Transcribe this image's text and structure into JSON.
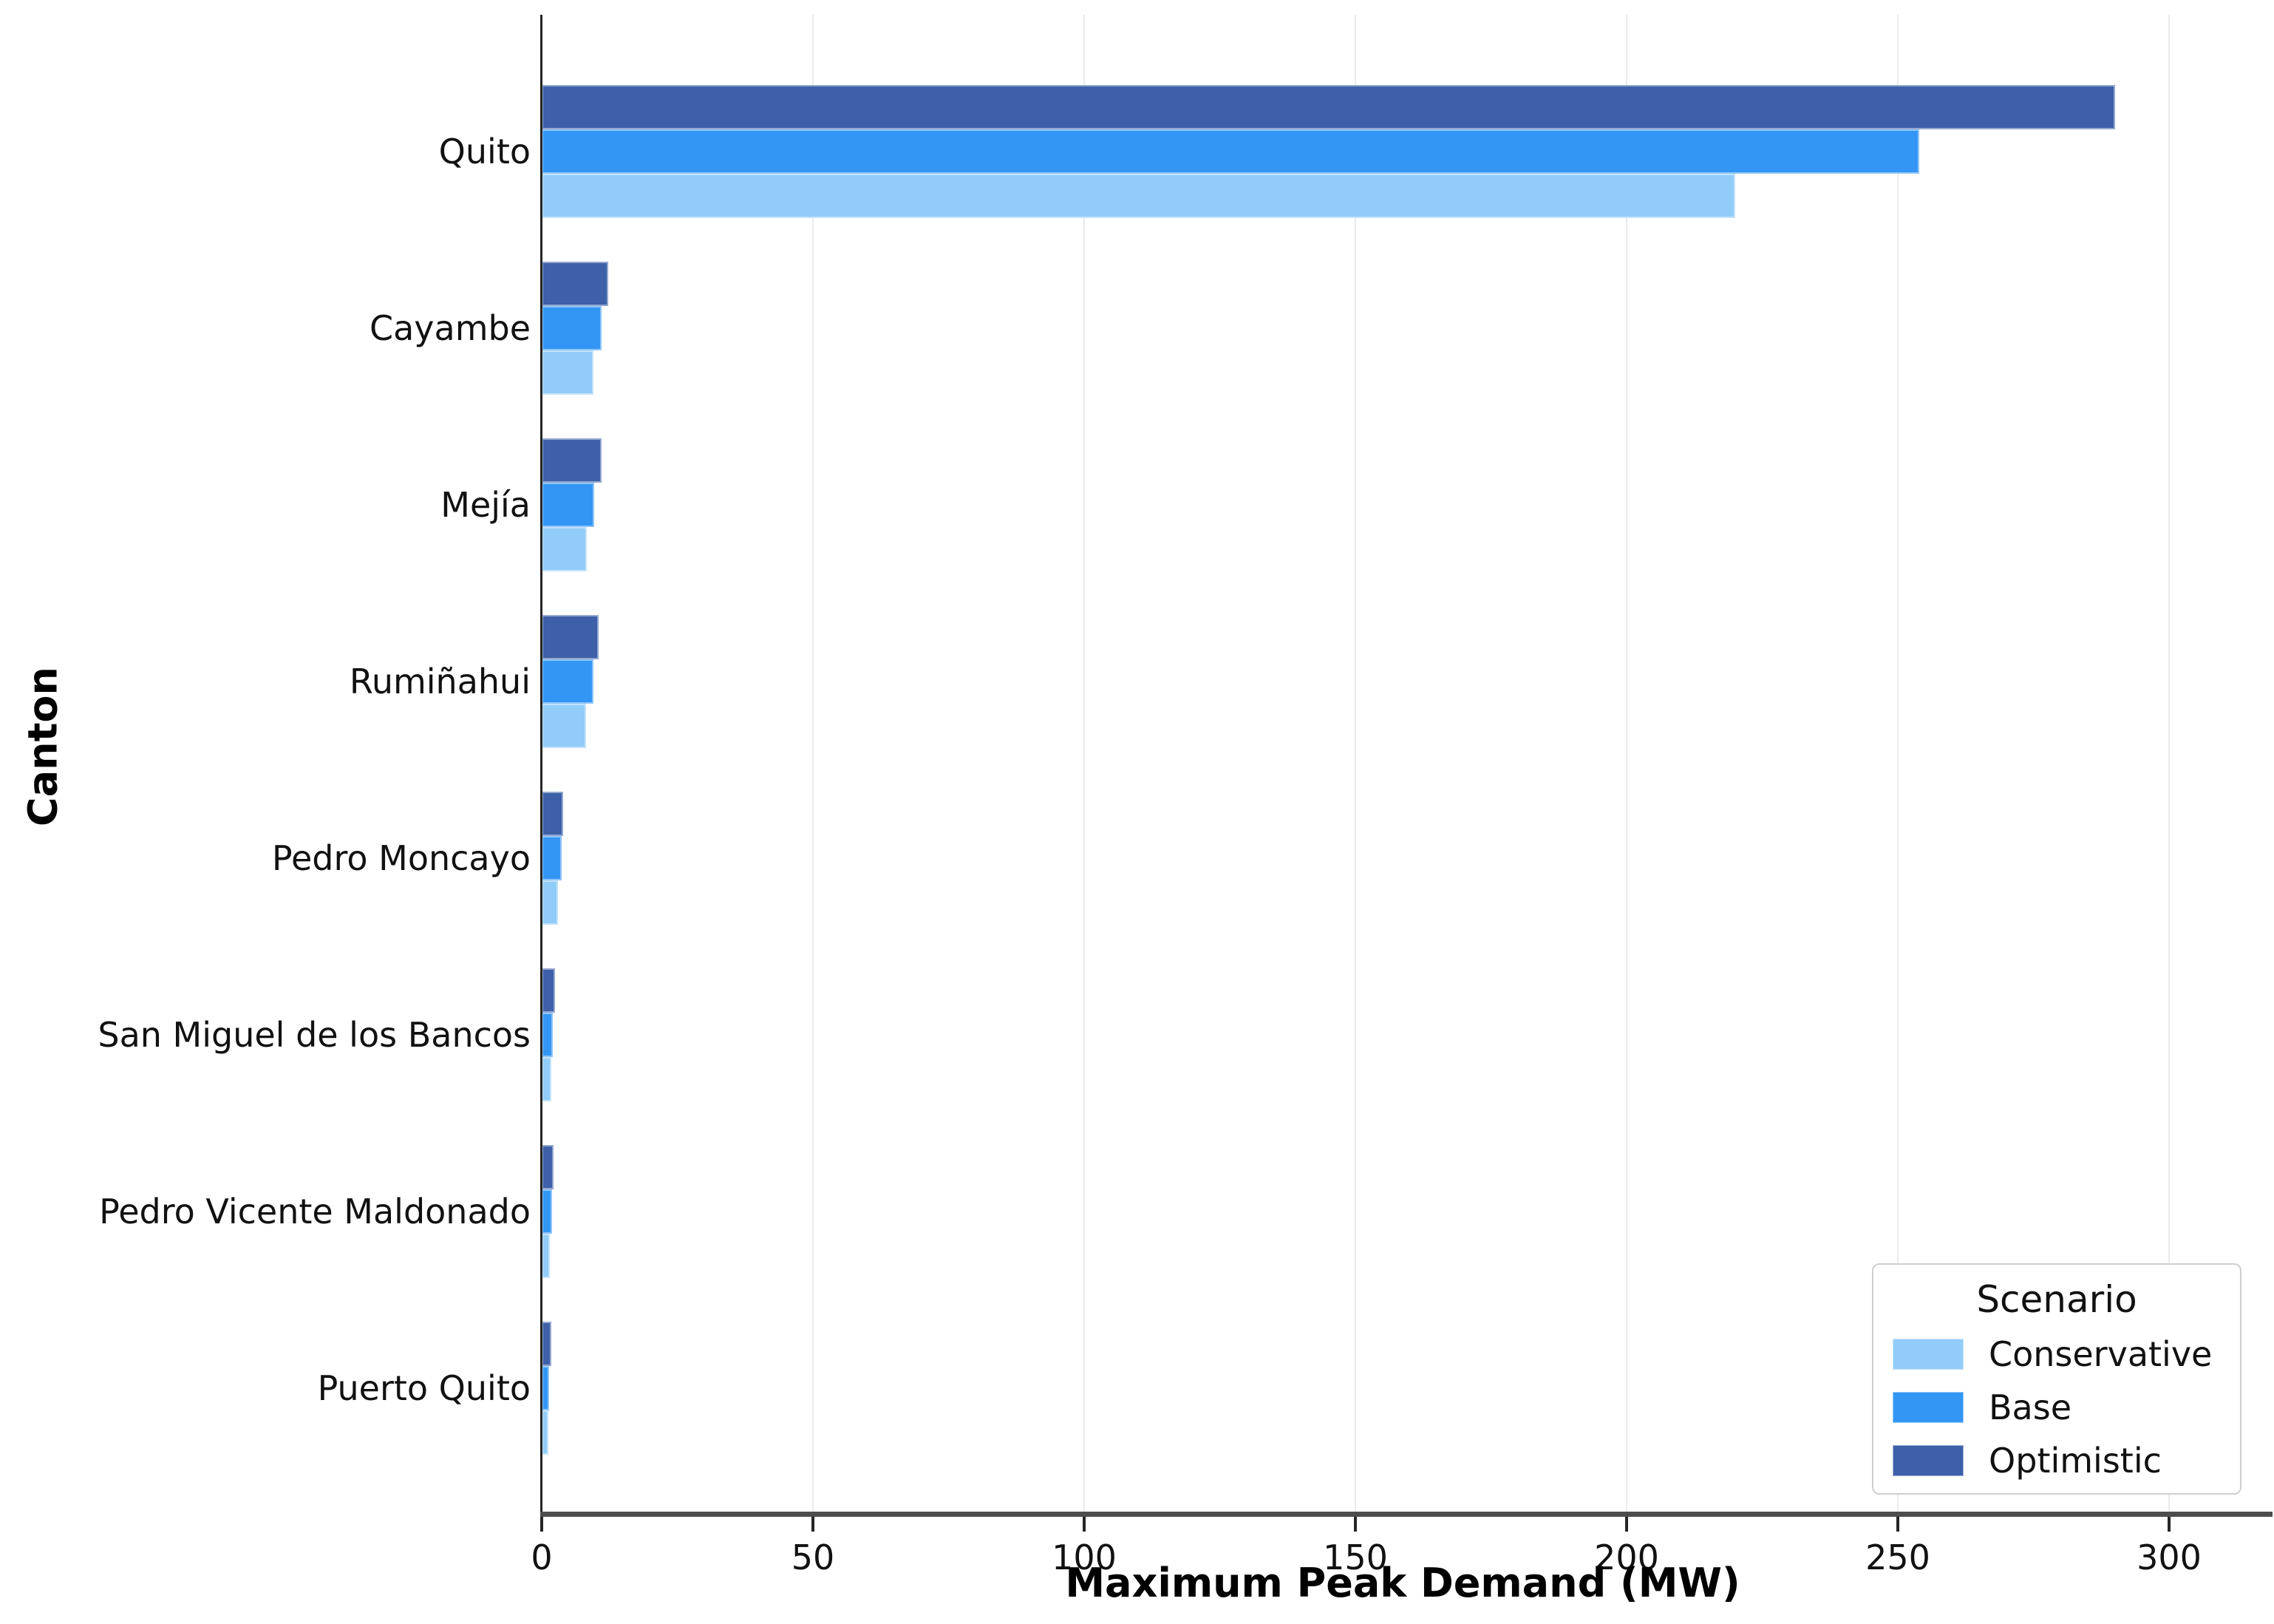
{
  "chart_data": {
    "type": "bar",
    "orientation": "horizontal",
    "xlabel": "Maximum Peak Demand (MW)",
    "ylabel": "Canton",
    "xlim": [
      0,
      317
    ],
    "xticks": [
      0,
      50,
      100,
      150,
      200,
      250,
      300
    ],
    "grid": "vertical-only",
    "categories": [
      "Quito",
      "Cayambe",
      "Mejía",
      "Rumiñahui",
      "Pedro Moncayo",
      "San Miguel de los Bancos",
      "Pedro Vicente Maldonado",
      "Puerto Quito"
    ],
    "series": [
      {
        "name": "Conservative",
        "color": "#92CCF8",
        "values": [
          220,
          9.5,
          8.3,
          8.2,
          3.0,
          1.8,
          1.5,
          1.2
        ]
      },
      {
        "name": "Base",
        "color": "#3396F4",
        "values": [
          254,
          11.0,
          9.7,
          9.5,
          3.7,
          2.0,
          1.9,
          1.4
        ]
      },
      {
        "name": "Optimistic",
        "color": "#3D60A8",
        "values": [
          290,
          12.3,
          11.0,
          10.5,
          4.0,
          2.5,
          2.2,
          1.8
        ]
      }
    ],
    "legend": {
      "title": "Scenario",
      "position": "lower right",
      "entries": [
        "Conservative",
        "Base",
        "Optimistic"
      ]
    }
  }
}
